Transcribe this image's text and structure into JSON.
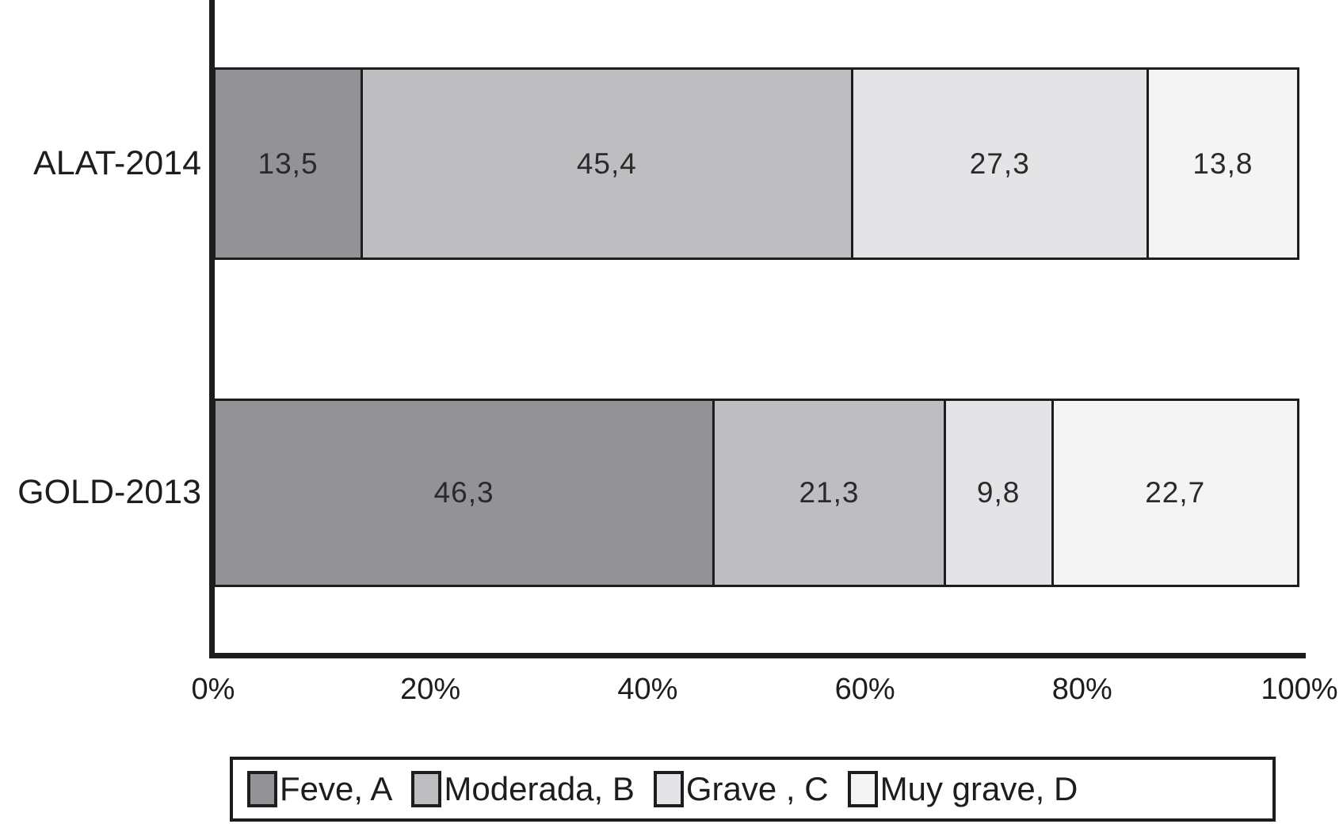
{
  "chart_data": {
    "type": "bar",
    "orientation": "horizontal",
    "stacked": true,
    "title": "",
    "xlabel": "",
    "ylabel": "",
    "xlim": [
      0,
      100
    ],
    "grid": false,
    "legend_position": "bottom",
    "categories": [
      "ALAT-2014",
      "GOLD-2013"
    ],
    "series": [
      {
        "name": "Feve, A",
        "color": "#939397",
        "values": [
          13.5,
          46.3
        ]
      },
      {
        "name": "Moderada, B",
        "color": "#bebec0",
        "values": [
          45.4,
          21.3
        ]
      },
      {
        "name": "Grave , C",
        "color": "#e4e4e6",
        "values": [
          27.3,
          9.8
        ]
      },
      {
        "name": "Muy grave, D",
        "color": "#f4f4f5",
        "values": [
          13.8,
          22.7
        ]
      }
    ],
    "value_labels": [
      [
        "13,5",
        "45,4",
        "27,3",
        "13,8"
      ],
      [
        "46,3",
        "21,3",
        "9,8",
        "22,7"
      ]
    ],
    "x_ticks": [
      "0%",
      "20%",
      "40%",
      "60%",
      "80%",
      "100%"
    ]
  },
  "colors": {
    "axis": "#1d1d1f",
    "background": "#ffffff",
    "label_text": "#2a2a2c"
  }
}
